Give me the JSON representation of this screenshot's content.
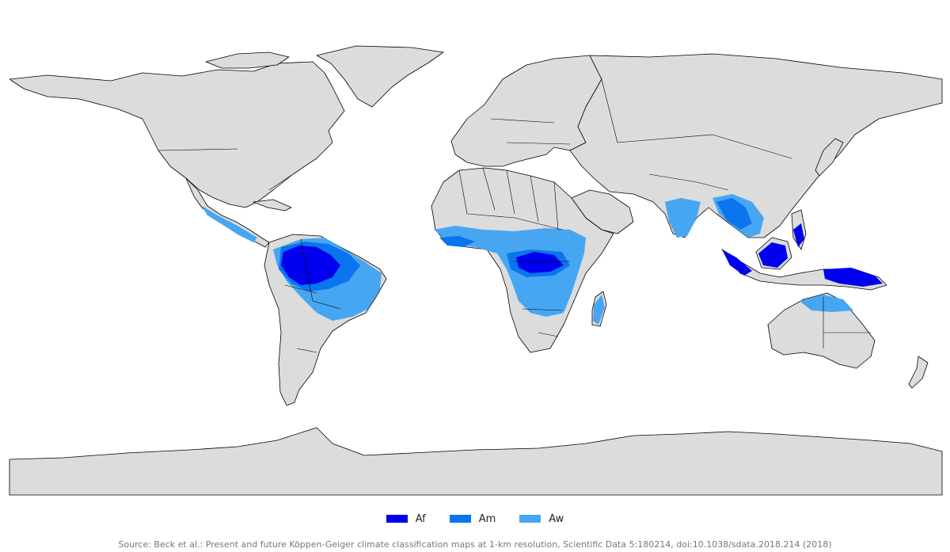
{
  "legend": {
    "items": [
      {
        "label": "Af",
        "color": "#0000ee"
      },
      {
        "label": "Am",
        "color": "#0a75ee"
      },
      {
        "label": "Aw",
        "color": "#47a6f2"
      }
    ]
  },
  "colors": {
    "land": "#dcdcdc",
    "ocean": "#ffffff",
    "border": "#000000"
  },
  "source": "Source: Beck et al.: Present and future Köppen-Geiger climate classification maps at 1-km resolution, Scientific Data 5:180214, doi:10.1038/sdata.2018.214 (2018)"
}
